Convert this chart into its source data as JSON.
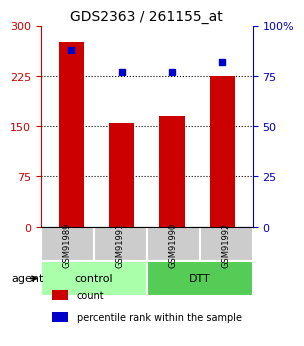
{
  "title": "GDS2363 / 261155_at",
  "samples": [
    "GSM91989",
    "GSM91991",
    "GSM91990",
    "GSM91992"
  ],
  "counts": [
    275,
    155,
    165,
    225
  ],
  "percentiles": [
    88,
    77,
    77,
    82
  ],
  "left_yticks": [
    0,
    75,
    150,
    225,
    300
  ],
  "right_yticks": [
    0,
    25,
    50,
    75,
    100
  ],
  "right_ylabels": [
    "0",
    "25",
    "50",
    "75",
    "100%"
  ],
  "ylim": [
    0,
    300
  ],
  "bar_color": "#cc0000",
  "dot_color": "#0000cc",
  "bar_width": 0.5,
  "groups": [
    {
      "label": "control",
      "samples": [
        "GSM91989",
        "GSM91991"
      ],
      "color": "#aaffaa"
    },
    {
      "label": "DTT",
      "samples": [
        "GSM91990",
        "GSM91992"
      ],
      "color": "#55cc55"
    }
  ],
  "agent_label": "agent",
  "legend_items": [
    {
      "color": "#cc0000",
      "label": "count"
    },
    {
      "color": "#0000cc",
      "label": "percentile rank within the sample"
    }
  ],
  "grid_color": "#000000",
  "background_color": "#ffffff",
  "plot_bg": "#ffffff",
  "box_bg": "#cccccc"
}
